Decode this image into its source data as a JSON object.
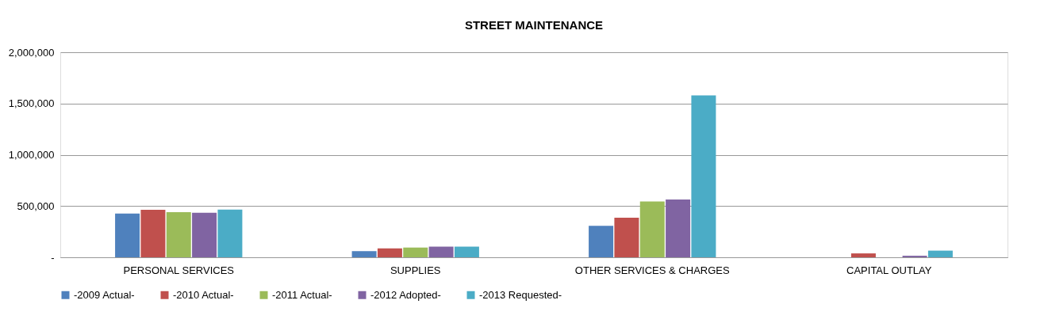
{
  "chart_data": {
    "type": "bar",
    "title": "STREET MAINTENANCE",
    "categories": [
      "PERSONAL SERVICES",
      "SUPPLIES",
      "OTHER SERVICES & CHARGES",
      "CAPITAL OUTLAY"
    ],
    "series": [
      {
        "name": "-2009 Actual-",
        "color": "#4f81bd",
        "values": [
          426000,
          60000,
          306000,
          0
        ]
      },
      {
        "name": "-2010 Actual-",
        "color": "#c0504d",
        "values": [
          464000,
          87000,
          386000,
          38000
        ]
      },
      {
        "name": "-2011 Actual-",
        "color": "#9bbb59",
        "values": [
          440000,
          95000,
          545000,
          0
        ]
      },
      {
        "name": "-2012 Adopted-",
        "color": "#8064a2",
        "values": [
          435000,
          104000,
          563000,
          15000
        ]
      },
      {
        "name": "-2013 Requested-",
        "color": "#4bacc6",
        "values": [
          466000,
          104000,
          1579000,
          65000
        ]
      }
    ],
    "ylim": [
      0,
      2000000
    ],
    "yticks": [
      {
        "value": 0,
        "label": "-"
      },
      {
        "value": 500000,
        "label": "500,000"
      },
      {
        "value": 1000000,
        "label": "1,000,000"
      },
      {
        "value": 1500000,
        "label": "1,500,000"
      },
      {
        "value": 2000000,
        "label": "2,000,000"
      }
    ],
    "grid": "y",
    "legend": "bottom"
  }
}
